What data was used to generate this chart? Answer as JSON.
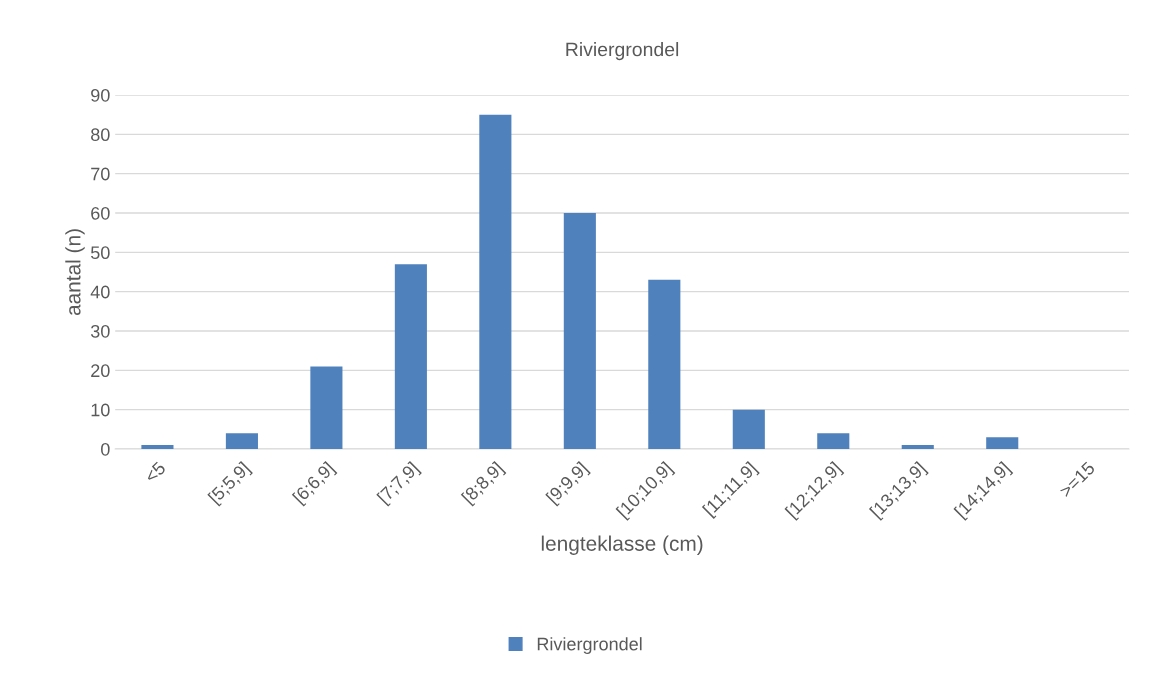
{
  "chart_data": {
    "type": "bar",
    "title": "Riviergrondel",
    "xlabel": "lengteklasse (cm)",
    "ylabel": "aantal (n)",
    "categories": [
      "<5",
      "[5;5,9]",
      "[6;6,9]",
      "[7;7,9]",
      "[8;8,9]",
      "[9;9,9]",
      "[10;10,9]",
      "[11;11,9]",
      "[12;12,9]",
      "[13;13,9]",
      "[14;14,9]",
      ">=15"
    ],
    "series": [
      {
        "name": "Riviergrondel",
        "color": "#4f81bd",
        "values": [
          1,
          4,
          21,
          47,
          85,
          60,
          43,
          10,
          4,
          1,
          3,
          0
        ]
      }
    ],
    "ylim": [
      0,
      90
    ],
    "yticks": [
      0,
      10,
      20,
      30,
      40,
      50,
      60,
      70,
      80,
      90
    ],
    "grid": "y",
    "legend": "bottom"
  }
}
